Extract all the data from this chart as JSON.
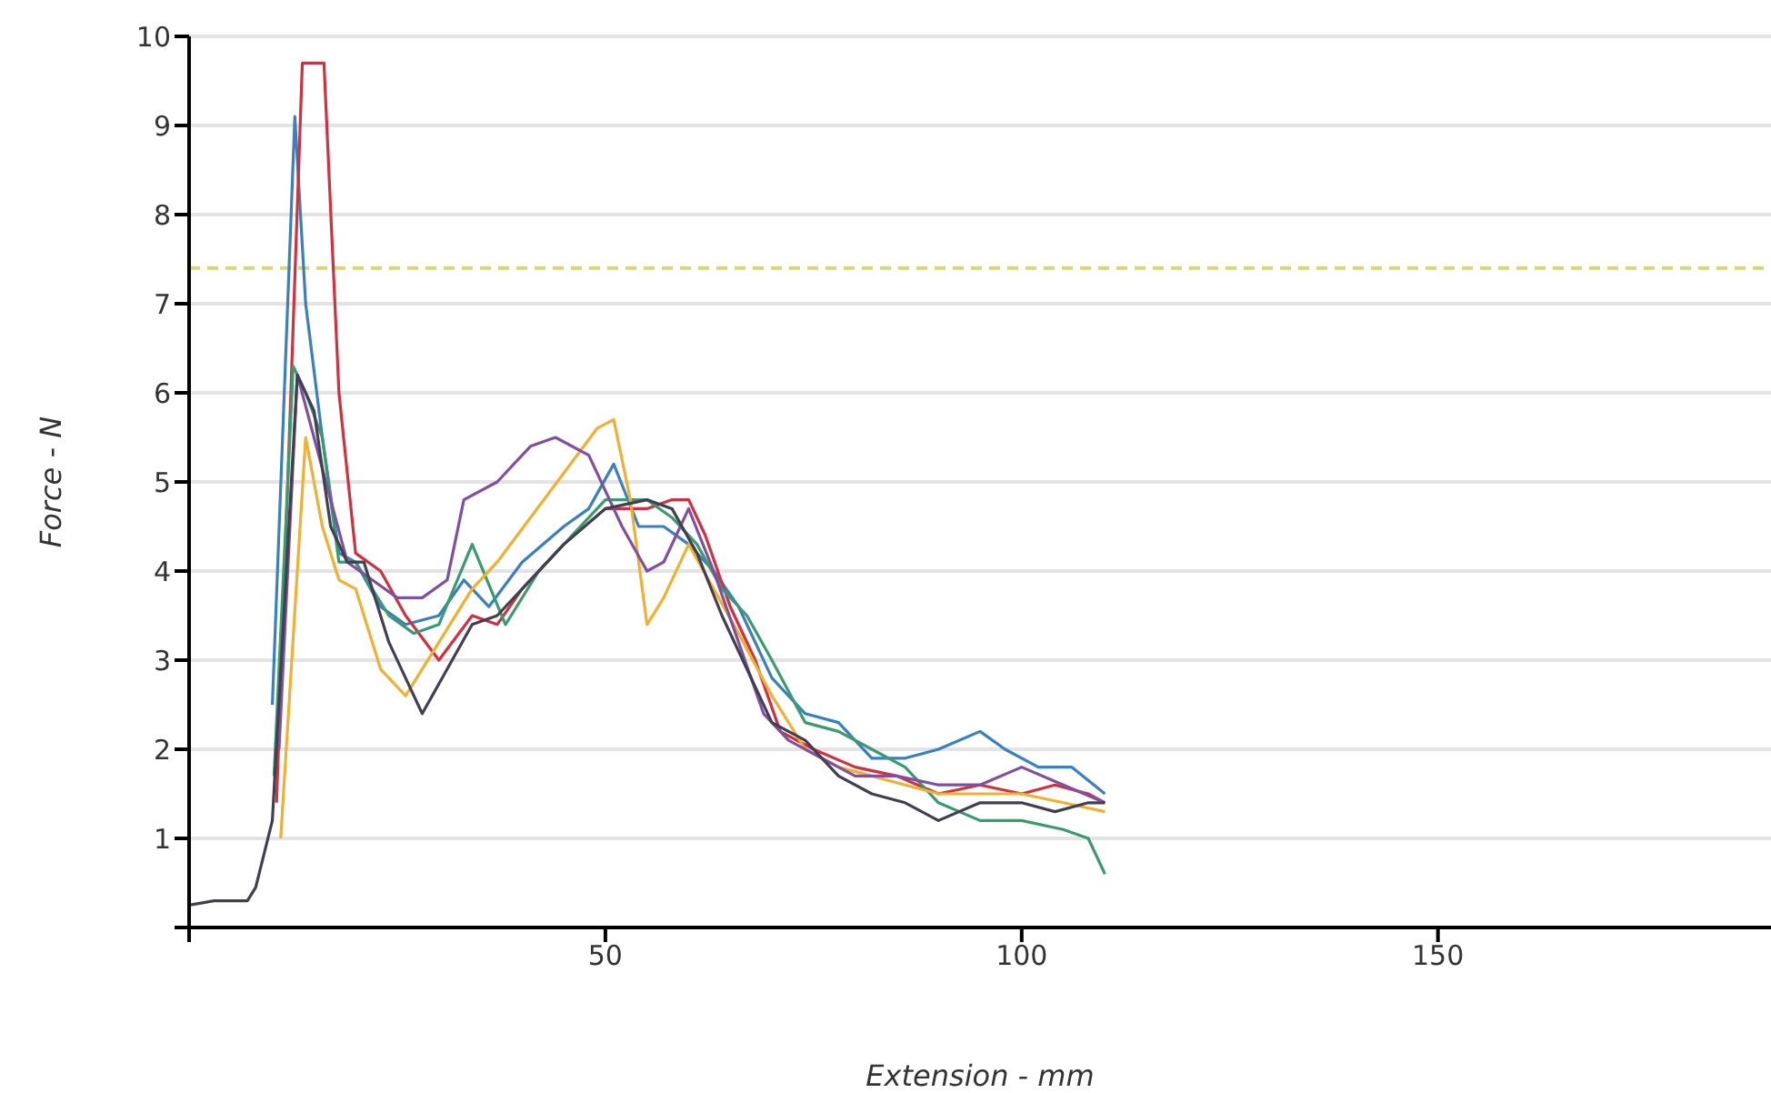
{
  "chart_data": {
    "type": "line",
    "xlabel": "Extension - mm",
    "ylabel": "Force - N",
    "xlim": [
      0,
      190
    ],
    "xticks": [
      {
        "value": 0,
        "label": null
      },
      50,
      100,
      150
    ],
    "ylim": [
      0,
      10
    ],
    "yticks": [
      {
        "value": 0,
        "label": null
      },
      1,
      2,
      3,
      4,
      5,
      6,
      7,
      8,
      9,
      10
    ],
    "grid": "y",
    "legend": false,
    "marker": "none",
    "line_style": "solid",
    "ref_lines": [
      {
        "axis": "y",
        "value": 7.4,
        "color": "#d8d870",
        "line_style": "dashed"
      }
    ],
    "series": [
      {
        "color": "#3a7fc0",
        "x": [
          10,
          12.7,
          14,
          16,
          18,
          20,
          23,
          26,
          30,
          33,
          36,
          40,
          45,
          48,
          51,
          54,
          57,
          60,
          63,
          66,
          70,
          74,
          78,
          82,
          86,
          90,
          95,
          98,
          102,
          106,
          110
        ],
        "values": [
          2.5,
          9.1,
          7,
          5.5,
          4.2,
          4.1,
          3.6,
          3.4,
          3.5,
          3.9,
          3.6,
          4.1,
          4.5,
          4.7,
          5.2,
          4.5,
          4.5,
          4.3,
          4,
          3.6,
          2.8,
          2.4,
          2.3,
          1.9,
          1.9,
          2,
          2.2,
          2,
          1.8,
          1.8,
          1.5
        ]
      },
      {
        "color": "#d03040",
        "x": [
          10.5,
          13.6,
          16.2,
          18,
          20,
          23,
          26,
          30,
          34,
          37,
          40,
          45,
          50,
          55,
          58,
          60,
          62,
          65,
          68,
          71,
          75,
          80,
          85,
          90,
          95,
          100,
          104,
          108,
          110
        ],
        "values": [
          1.4,
          9.7,
          9.7,
          6,
          4.2,
          4,
          3.5,
          3,
          3.5,
          3.4,
          3.8,
          4.3,
          4.7,
          4.7,
          4.8,
          4.8,
          4.4,
          3.6,
          3,
          2.2,
          2,
          1.8,
          1.7,
          1.5,
          1.6,
          1.5,
          1.6,
          1.5,
          1.4
        ]
      },
      {
        "color": "#3a9a70",
        "x": [
          10.2,
          12.5,
          14,
          16,
          18,
          20,
          24,
          27,
          30,
          34,
          38,
          42,
          46,
          50,
          55,
          58,
          61,
          64,
          67,
          70,
          74,
          78,
          82,
          86,
          90,
          95,
          100,
          105,
          108,
          110
        ],
        "values": [
          1.7,
          6.3,
          6,
          5.5,
          4.1,
          4.1,
          3.5,
          3.3,
          3.4,
          4.3,
          3.4,
          4,
          4.4,
          4.8,
          4.8,
          4.6,
          4.3,
          3.8,
          3.5,
          3,
          2.3,
          2.2,
          2,
          1.8,
          1.4,
          1.2,
          1.2,
          1.1,
          1,
          0.6
        ]
      },
      {
        "color": "#f0b030",
        "x": [
          11,
          14,
          16,
          18,
          20,
          23,
          26,
          30,
          34,
          37,
          41,
          45,
          49,
          51,
          53,
          55,
          57,
          60,
          63,
          66,
          70,
          74,
          78,
          82,
          86,
          90,
          95,
          100,
          105,
          110
        ],
        "values": [
          1,
          5.5,
          4.5,
          3.9,
          3.8,
          2.9,
          2.6,
          3.2,
          3.8,
          4.1,
          4.6,
          5.1,
          5.6,
          5.7,
          4.8,
          3.4,
          3.7,
          4.3,
          3.8,
          3.3,
          2.6,
          2,
          1.8,
          1.7,
          1.6,
          1.5,
          1.5,
          1.5,
          1.4,
          1.3
        ]
      },
      {
        "color": "#8050a0",
        "x": [
          10.8,
          13,
          15,
          17,
          19,
          22,
          25,
          28,
          31,
          33,
          37,
          41,
          44,
          48,
          52,
          55,
          57,
          60,
          63,
          66,
          69,
          72,
          76,
          80,
          85,
          90,
          95,
          100,
          105,
          110
        ],
        "values": [
          2,
          6.2,
          5.5,
          4.8,
          4.1,
          3.9,
          3.7,
          3.7,
          3.9,
          4.8,
          5,
          5.4,
          5.5,
          5.3,
          4.5,
          4,
          4.1,
          4.7,
          4,
          3.2,
          2.4,
          2.1,
          1.9,
          1.7,
          1.7,
          1.6,
          1.6,
          1.8,
          1.6,
          1.4
        ]
      },
      {
        "color": "#404050",
        "x": [
          0,
          3,
          7,
          8,
          10,
          13,
          15,
          17,
          19,
          21,
          24,
          28,
          31,
          34,
          37,
          41,
          45,
          50,
          55,
          58,
          61,
          64,
          67,
          70,
          74,
          78,
          82,
          86,
          90,
          95,
          100,
          104,
          108,
          110
        ],
        "values": [
          0.25,
          0.3,
          0.3,
          0.45,
          1.2,
          6.2,
          5.8,
          4.5,
          4.1,
          4.1,
          3.2,
          2.4,
          2.9,
          3.4,
          3.5,
          3.9,
          4.3,
          4.7,
          4.8,
          4.7,
          4.2,
          3.5,
          2.9,
          2.3,
          2.1,
          1.7,
          1.5,
          1.4,
          1.2,
          1.4,
          1.4,
          1.3,
          1.4,
          1.4
        ]
      }
    ]
  }
}
